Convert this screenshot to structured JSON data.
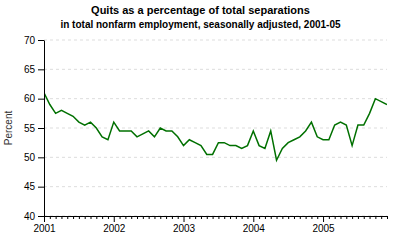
{
  "chart_data": {
    "type": "line",
    "title": "Quits as a percentage of total separations",
    "subtitle": "in total nonfarm employment, seasonally adjusted, 2001-05",
    "y_label": "Percent",
    "categories": [
      "2001",
      null,
      null,
      null,
      null,
      null,
      null,
      null,
      null,
      null,
      null,
      null,
      "2002",
      null,
      null,
      null,
      null,
      null,
      null,
      null,
      null,
      null,
      null,
      null,
      "2003",
      null,
      null,
      null,
      null,
      null,
      null,
      null,
      null,
      null,
      null,
      null,
      "2004",
      null,
      null,
      null,
      null,
      null,
      null,
      null,
      null,
      null,
      null,
      null,
      "2005",
      null,
      null,
      null,
      null,
      null,
      null,
      null,
      null,
      null,
      null,
      null
    ],
    "values": [
      61.0,
      59.0,
      57.5,
      58.0,
      57.5,
      57.0,
      56.0,
      55.5,
      56.0,
      55.0,
      53.5,
      53.0,
      56.0,
      54.5,
      54.5,
      54.5,
      53.5,
      54.0,
      54.5,
      53.5,
      55.0,
      54.5,
      54.5,
      53.5,
      52.0,
      53.0,
      52.5,
      52.0,
      50.5,
      50.5,
      52.5,
      52.5,
      52.0,
      52.0,
      51.5,
      52.0,
      54.5,
      52.0,
      51.5,
      54.5,
      49.5,
      51.5,
      52.5,
      53.0,
      53.5,
      54.5,
      56.0,
      53.5,
      53.0,
      53.0,
      55.5,
      56.0,
      55.5,
      52.0,
      55.5,
      55.5,
      57.5,
      60.0,
      59.5,
      59.0
    ],
    "color": "#007000",
    "ylim": [
      40,
      70
    ],
    "yticks": [
      40,
      45,
      50,
      55,
      60,
      65,
      70
    ],
    "grid": true
  }
}
